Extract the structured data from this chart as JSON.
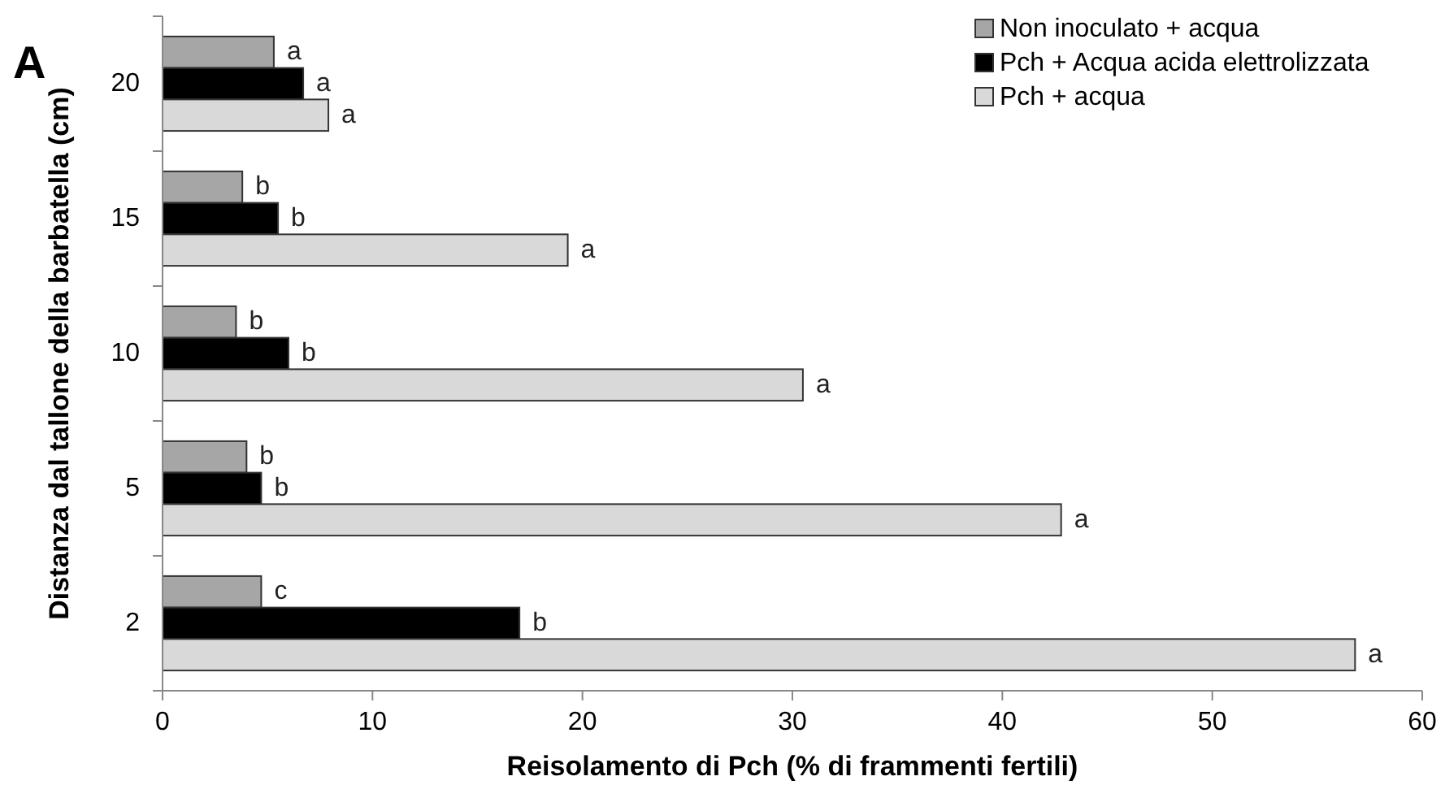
{
  "chart_data": {
    "type": "bar",
    "orientation": "horizontal",
    "xlabel": "Reisolamento di Pch (% di frammenti fertili)",
    "ylabel": "Distanza dal tallone della barbatella (cm)",
    "annotations": [
      "A"
    ],
    "categories": [
      "20",
      "15",
      "10",
      "5",
      "2"
    ],
    "series": [
      {
        "name": "Non inoculato + acqua",
        "color": "#a6a6a6",
        "values": [
          5.3,
          3.8,
          3.5,
          4.0,
          4.7
        ],
        "value_labels": [
          "a",
          "b",
          "b",
          "b",
          "c"
        ]
      },
      {
        "name": "Pch + Acqua acida elettrolizzata",
        "color": "#000000",
        "values": [
          6.7,
          5.5,
          6.0,
          4.7,
          17.0
        ],
        "value_labels": [
          "a",
          "b",
          "b",
          "b",
          "b"
        ]
      },
      {
        "name": "Pch + acqua",
        "color": "#d9d9d9",
        "values": [
          7.9,
          19.3,
          30.5,
          42.8,
          56.8
        ],
        "value_labels": [
          "a",
          "a",
          "a",
          "a",
          "a"
        ]
      }
    ],
    "xlim": [
      0,
      60
    ],
    "xticks": [
      0,
      10,
      20,
      30,
      40,
      50,
      60
    ],
    "legend": "top right"
  }
}
